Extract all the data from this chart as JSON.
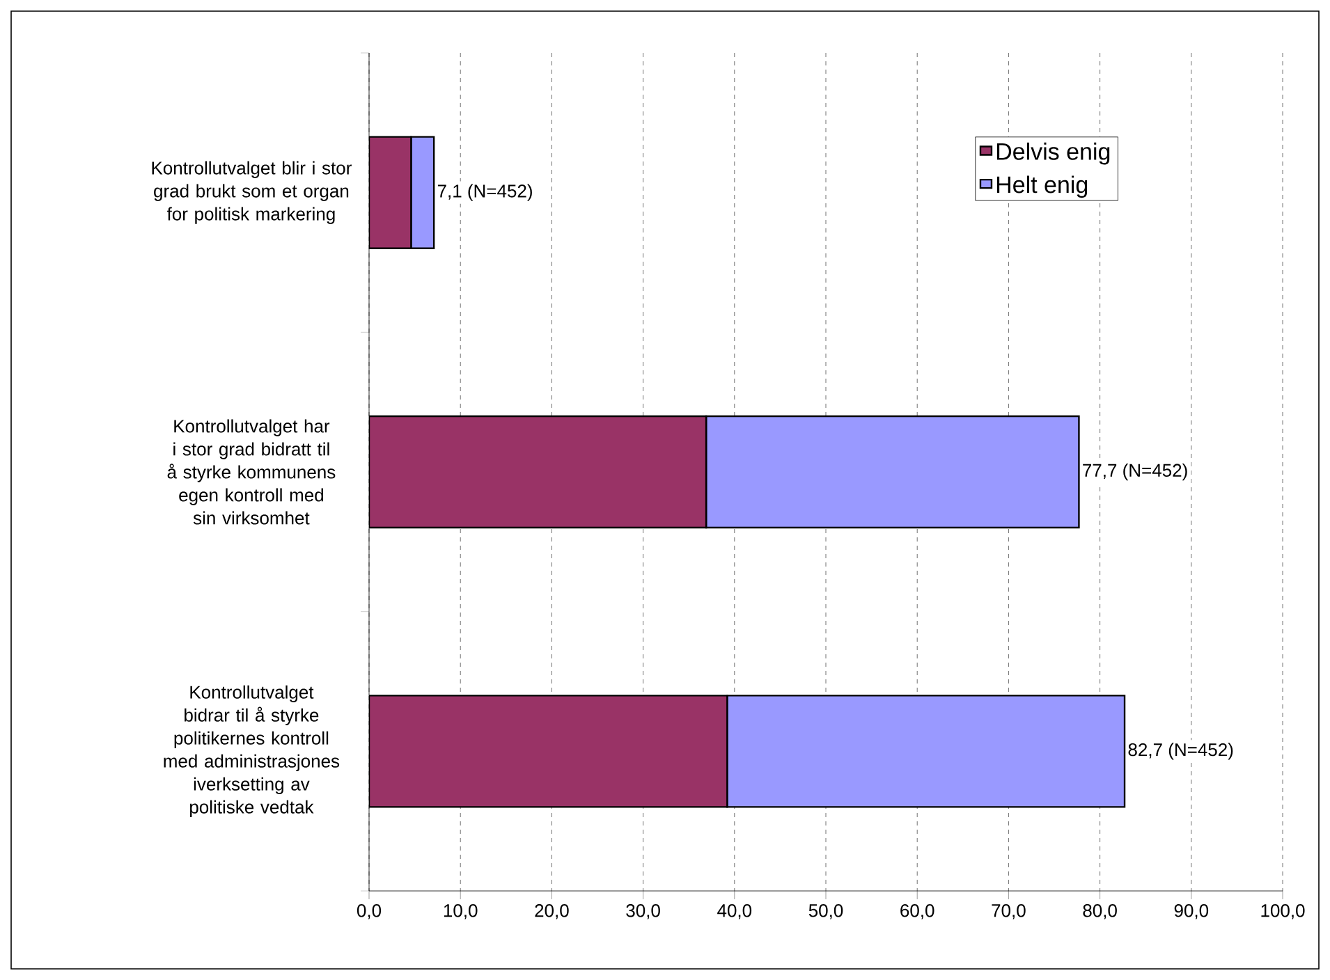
{
  "chart_data": {
    "type": "bar",
    "orientation": "horizontal",
    "stacked": true,
    "categories": [
      "Kontrollutvalget blir i stor grad brukt som et organ for politisk markering",
      "Kontrollutvalget har i stor grad bidratt til å styrke kommunens egen kontroll med sin virksomhet",
      "Kontrollutvalget bidrar til å styrke politikernes kontroll med administrasjones iverksetting av politiske vedtak"
    ],
    "series": [
      {
        "name": "Delvis enig",
        "color": "#993366",
        "values": [
          4.6,
          36.9,
          39.2
        ]
      },
      {
        "name": "Helt enig",
        "color": "#9999ff",
        "values": [
          2.5,
          40.8,
          43.5
        ]
      }
    ],
    "totals": [
      "7,1 (N=452)",
      "77,7 (N=452)",
      "82,7 (N=452)"
    ],
    "xlim": [
      0,
      100
    ],
    "xticks": [
      {
        "value": 0,
        "label": "0,0"
      },
      {
        "value": 10,
        "label": "10,0"
      },
      {
        "value": 20,
        "label": "20,0"
      },
      {
        "value": 30,
        "label": "30,0"
      },
      {
        "value": 40,
        "label": "40,0"
      },
      {
        "value": 50,
        "label": "50,0"
      },
      {
        "value": 60,
        "label": "60,0"
      },
      {
        "value": 70,
        "label": "70,0"
      },
      {
        "value": 80,
        "label": "80,0"
      },
      {
        "value": 90,
        "label": "90,0"
      },
      {
        "value": 100,
        "label": "100,0"
      }
    ],
    "grid": "x",
    "legend": "top right"
  }
}
